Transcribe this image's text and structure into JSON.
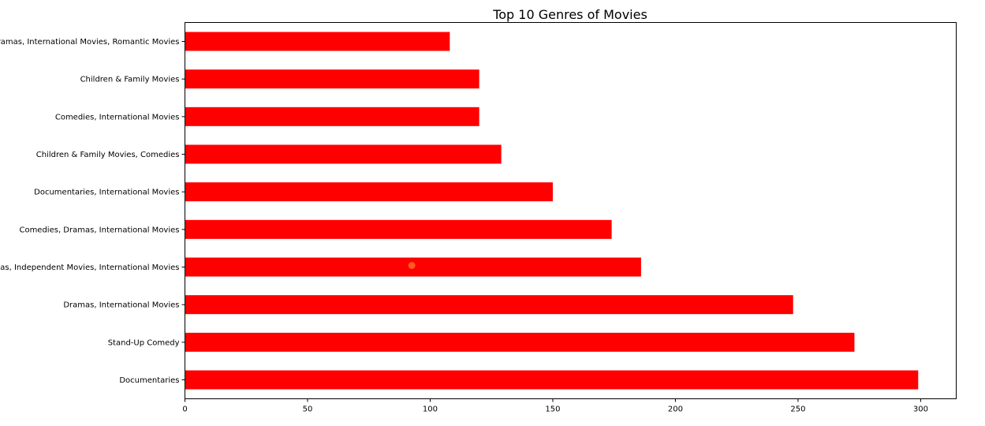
{
  "chart_data": {
    "type": "bar",
    "orientation": "horizontal",
    "title": "Top 10 Genres of Movies",
    "xlabel": "",
    "ylabel": "",
    "categories": [
      "Documentaries",
      "Stand-Up Comedy",
      "Dramas, International Movies",
      "Dramas, Independent Movies, International Movies",
      "Comedies, Dramas, International Movies",
      "Documentaries, International Movies",
      "Children & Family Movies, Comedies",
      "Comedies, International Movies",
      "Children & Family Movies",
      "Dramas, International Movies, Romantic Movies"
    ],
    "values": [
      299,
      273,
      248,
      186,
      174,
      150,
      129,
      120,
      120,
      108
    ],
    "xlim": [
      0,
      314.5
    ],
    "xticks": [
      0,
      50,
      100,
      150,
      200,
      250,
      300
    ],
    "grid": false,
    "bar_color": "#ff0000",
    "marker": {
      "x": 92.5,
      "y": "Dramas, Independent Movies, International Movies",
      "color": "#ff5a1f"
    }
  }
}
